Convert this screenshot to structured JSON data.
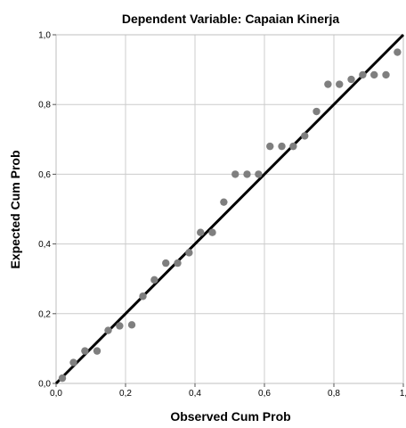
{
  "chart_data": {
    "type": "scatter",
    "title": "",
    "subtitle": "Dependent Variable: Capaian Kinerja",
    "xlabel": "Observed Cum Prob",
    "ylabel": "Expected Cum Prob",
    "xlim": [
      0,
      1
    ],
    "ylim": [
      0,
      1
    ],
    "xticks": [
      "0,0",
      "0,2",
      "0,4",
      "0,6",
      "0,8",
      "1,"
    ],
    "yticks": [
      "0,0",
      "0,2",
      "0,4",
      "0,6",
      "0,8",
      "1,0"
    ],
    "grid": true,
    "colors": {
      "points": "#7f7f7f",
      "reference_line": "#000000",
      "grid": "#cccccc"
    },
    "reference_line": {
      "x": [
        0,
        1
      ],
      "y": [
        0,
        1
      ]
    },
    "points": {
      "x": [
        0.018,
        0.05,
        0.083,
        0.118,
        0.15,
        0.183,
        0.218,
        0.25,
        0.283,
        0.316,
        0.35,
        0.383,
        0.416,
        0.45,
        0.483,
        0.516,
        0.55,
        0.583,
        0.616,
        0.65,
        0.683,
        0.716,
        0.75,
        0.783,
        0.816,
        0.85,
        0.883,
        0.916,
        0.95,
        0.983
      ],
      "y": [
        0.015,
        0.06,
        0.093,
        0.093,
        0.152,
        0.165,
        0.168,
        0.25,
        0.297,
        0.345,
        0.345,
        0.375,
        0.433,
        0.433,
        0.52,
        0.6,
        0.6,
        0.6,
        0.68,
        0.68,
        0.68,
        0.71,
        0.78,
        0.858,
        0.858,
        0.872,
        0.885,
        0.885,
        0.885,
        0.95
      ]
    }
  }
}
